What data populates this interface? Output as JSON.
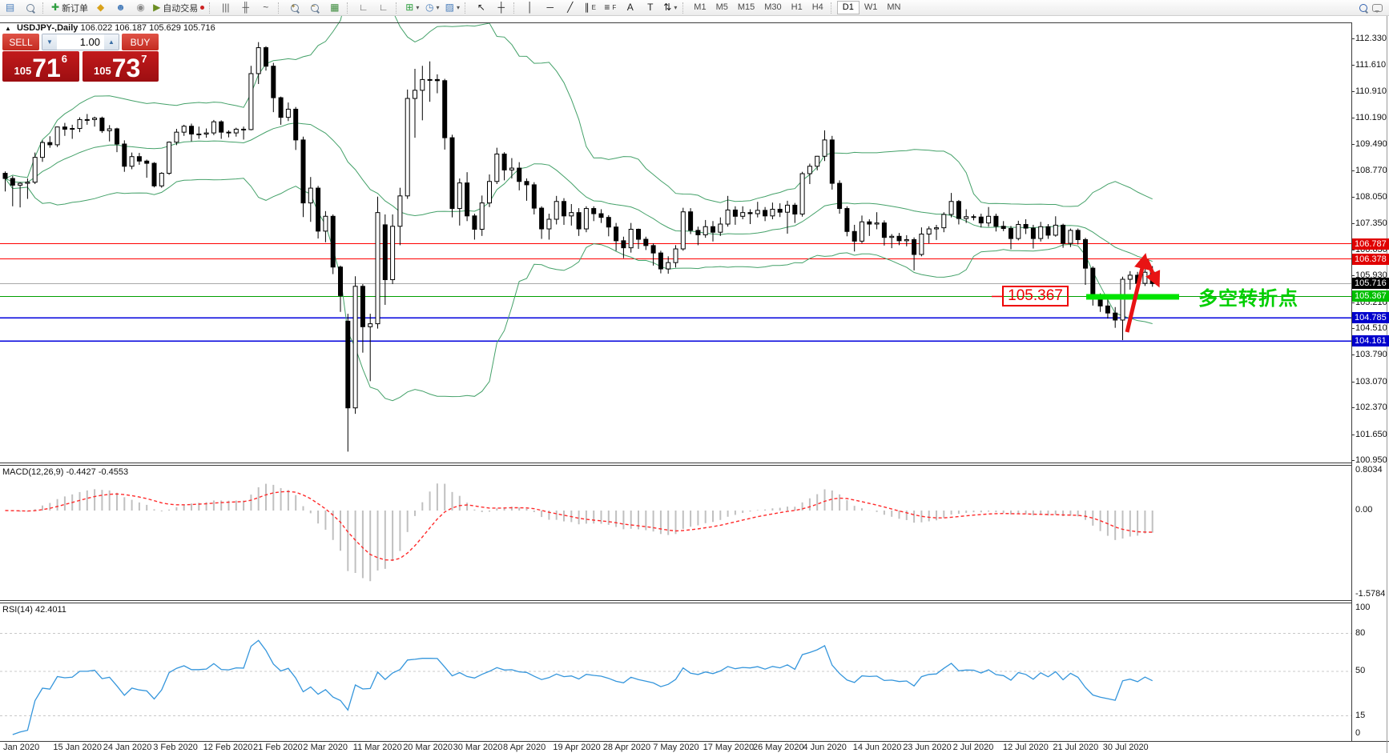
{
  "toolbar": {
    "new_order_label": "新订单",
    "autotrading_label": "自动交易",
    "timeframes": [
      "M1",
      "M5",
      "M15",
      "M30",
      "H1",
      "H4",
      "D1",
      "W1",
      "MN"
    ],
    "active_timeframe": "D1",
    "groups": [
      [
        {
          "name": "chart-window-icon",
          "glyph": "▤",
          "color": "#4a7ebb"
        },
        {
          "name": "preview-icon",
          "type": "magnifier"
        }
      ],
      [
        {
          "name": "new-order-icon",
          "glyph": "✚",
          "color": "#2e9e3f",
          "label": "新订单"
        },
        {
          "name": "quotes-icon",
          "glyph": "◆",
          "color": "#d9a21b"
        },
        {
          "name": "community-icon",
          "glyph": "☻",
          "color": "#4a7ebb"
        },
        {
          "name": "signals-icon",
          "glyph": "◉",
          "color": "#8a8a8a"
        },
        {
          "name": "autotrading-icon",
          "glyph": "▶",
          "color": "#6b8e23",
          "label": "自动交易",
          "dot": "#cc2222"
        }
      ],
      [
        {
          "name": "bar-chart-icon",
          "glyph": "|||",
          "color": "#555"
        },
        {
          "name": "candlestick-icon",
          "glyph": "╫",
          "color": "#555"
        },
        {
          "name": "line-chart-icon",
          "glyph": "~",
          "color": "#555"
        }
      ],
      [
        {
          "name": "zoom-in-icon",
          "type": "magnifier",
          "sign": "+"
        },
        {
          "name": "zoom-out-icon",
          "type": "magnifier",
          "sign": "−"
        },
        {
          "name": "tile-windows-icon",
          "glyph": "▦",
          "color": "#3a8a3a"
        }
      ],
      [
        {
          "name": "data-window-icon",
          "glyph": "∟",
          "color": "#555"
        },
        {
          "name": "navigator-icon",
          "glyph": "∟",
          "color": "#555"
        }
      ],
      [
        {
          "name": "add-indicator-icon",
          "glyph": "⊞",
          "color": "#2e9e3f",
          "caret": true
        },
        {
          "name": "period-icon",
          "glyph": "◷",
          "color": "#4a7ebb",
          "caret": true
        },
        {
          "name": "template-icon",
          "glyph": "▨",
          "color": "#4a7ebb",
          "caret": true
        }
      ],
      [
        {
          "name": "cursor-icon",
          "glyph": "↖",
          "color": "#222"
        },
        {
          "name": "crosshair-icon",
          "glyph": "┼",
          "color": "#222"
        }
      ],
      [
        {
          "name": "vertical-line-icon",
          "glyph": "│",
          "color": "#222"
        },
        {
          "name": "horizontal-line-icon",
          "glyph": "─",
          "color": "#222"
        },
        {
          "name": "trendline-icon",
          "glyph": "╱",
          "color": "#222"
        },
        {
          "name": "channel-icon",
          "glyph": "∥",
          "color": "#222",
          "sub": "E"
        },
        {
          "name": "fibonacci-icon",
          "glyph": "≡",
          "color": "#222",
          "sub": "F"
        },
        {
          "name": "text-icon",
          "glyph": "A",
          "color": "#222"
        },
        {
          "name": "label-icon",
          "glyph": "T",
          "color": "#222"
        },
        {
          "name": "arrows-icon",
          "glyph": "⇅",
          "color": "#222",
          "caret": true
        }
      ]
    ]
  },
  "chart_header": {
    "collapse_icon": "▲",
    "symbol": "USDJPY-,Daily",
    "ohlc": "106.022 106.187 105.629 105.716"
  },
  "trade_panel": {
    "sell_label": "SELL",
    "buy_label": "BUY",
    "volume": "1.00",
    "sell_price": {
      "prefix": "105",
      "big": "71",
      "sup": "6"
    },
    "buy_price": {
      "prefix": "105",
      "big": "73",
      "sup": "7"
    }
  },
  "price_axis": {
    "ticks": [
      "112.330",
      "111.610",
      "110.910",
      "110.190",
      "109.490",
      "108.770",
      "108.050",
      "107.350",
      "106.630",
      "105.930",
      "105.210",
      "104.510",
      "103.790",
      "103.070",
      "102.370",
      "101.650",
      "100.950"
    ],
    "badges": [
      {
        "text": "106.787",
        "price": 106.787,
        "bg": "#e00000"
      },
      {
        "text": "106.378",
        "price": 106.378,
        "bg": "#e00000"
      },
      {
        "text": "105.716",
        "price": 105.716,
        "bg": "#000000"
      },
      {
        "text": "105.367",
        "price": 105.367,
        "bg": "#00c000"
      },
      {
        "text": "104.785",
        "price": 104.785,
        "bg": "#0000cc"
      },
      {
        "text": "104.161",
        "price": 104.161,
        "bg": "#0000cc"
      }
    ]
  },
  "time_axis": {
    "labels": [
      "Jan 2020",
      "15 Jan 2020",
      "24 Jan 2020",
      "3 Feb 2020",
      "12 Feb 2020",
      "21 Feb 2020",
      "2 Mar 2020",
      "11 Mar 2020",
      "20 Mar 2020",
      "30 Mar 2020",
      "8 Apr 2020",
      "19 Apr 2020",
      "28 Apr 2020",
      "7 May 2020",
      "17 May 2020",
      "26 May 2020",
      "4 Jun 2020",
      "14 Jun 2020",
      "23 Jun 2020",
      "2 Jul 2020",
      "12 Jul 2020",
      "21 Jul 2020",
      "30 Jul 2020"
    ]
  },
  "annotations": {
    "level_label": "105.367",
    "note_text": "多空转折点"
  },
  "macd_panel": {
    "label": "MACD(12,26,9) -0.4427 -0.4553",
    "scale_top": "0.8034",
    "scale_zero": "0.00",
    "scale_bottom": "-1.5784"
  },
  "rsi_panel": {
    "label": "RSI(14) 42.4011",
    "scale": [
      "100",
      "80",
      "50",
      "15",
      "0"
    ],
    "level_values": [
      80,
      50,
      15
    ]
  },
  "chart_data": {
    "type": "candlestick",
    "symbol": "USDJPY",
    "timeframe": "Daily",
    "current_ohlc": {
      "open": 106.022,
      "high": 106.187,
      "low": 105.629,
      "close": 105.716
    },
    "y_axis_range": [
      100.88,
      112.76
    ],
    "horizontal_lines": [
      {
        "price": 106.787,
        "color": "#ff0000",
        "width": 1
      },
      {
        "price": 106.378,
        "color": "#ff0000",
        "width": 1
      },
      {
        "price": 105.716,
        "color": "#a8a8a8",
        "width": 1
      },
      {
        "price": 105.367,
        "color": "#00a000",
        "width": 1
      },
      {
        "price": 104.785,
        "color": "#0000dd",
        "width": 1.5
      },
      {
        "price": 104.161,
        "color": "#0000dd",
        "width": 1.5
      }
    ],
    "highlight_segment": {
      "price": 105.367,
      "color": "#00e400"
    },
    "indicators": [
      {
        "name": "Bollinger Bands",
        "period": 20,
        "deviation": 2,
        "color": "#44a169"
      },
      {
        "name": "MACD",
        "fast": 12,
        "slow": 26,
        "signal": 9,
        "values": [
          -0.4427,
          -0.4553
        ],
        "histogram_color": "#c0c0c0",
        "signal_color": "#ff2a2a"
      },
      {
        "name": "RSI",
        "period": 14,
        "value": 42.4011,
        "color": "#3596dc"
      }
    ],
    "candles": [
      [
        108.69,
        108.74,
        108.2,
        108.55
      ],
      [
        108.55,
        108.62,
        107.8,
        108.37
      ],
      [
        108.37,
        108.45,
        107.77,
        108.42
      ],
      [
        108.42,
        108.55,
        108.0,
        108.45
      ],
      [
        108.45,
        109.25,
        108.4,
        109.12
      ],
      [
        109.12,
        109.58,
        109.0,
        109.52
      ],
      [
        109.52,
        109.69,
        109.38,
        109.46
      ],
      [
        109.46,
        109.95,
        109.4,
        109.94
      ],
      [
        109.94,
        110.05,
        109.7,
        109.88
      ],
      [
        109.88,
        110.0,
        109.62,
        109.9
      ],
      [
        109.9,
        110.2,
        109.8,
        110.14
      ],
      [
        110.14,
        110.29,
        110.0,
        110.14
      ],
      [
        110.14,
        110.22,
        109.95,
        110.18
      ],
      [
        110.18,
        110.22,
        109.78,
        109.84
      ],
      [
        109.84,
        109.99,
        109.55,
        109.89
      ],
      [
        109.89,
        109.92,
        109.26,
        109.48
      ],
      [
        109.48,
        109.58,
        108.73,
        108.88
      ],
      [
        108.88,
        109.25,
        108.8,
        109.14
      ],
      [
        109.14,
        109.24,
        108.92,
        109.02
      ],
      [
        109.02,
        109.06,
        108.57,
        108.96
      ],
      [
        108.96,
        108.99,
        108.31,
        108.35
      ],
      [
        108.35,
        108.72,
        108.3,
        108.69
      ],
      [
        108.69,
        109.55,
        108.65,
        109.53
      ],
      [
        109.53,
        109.89,
        109.45,
        109.8
      ],
      [
        109.8,
        110.0,
        109.7,
        109.96
      ],
      [
        109.96,
        110.03,
        109.55,
        109.75
      ],
      [
        109.75,
        109.95,
        109.62,
        109.75
      ],
      [
        109.75,
        109.9,
        109.65,
        109.78
      ],
      [
        109.78,
        110.13,
        109.72,
        110.08
      ],
      [
        110.08,
        110.12,
        109.62,
        109.8
      ],
      [
        109.8,
        109.85,
        109.66,
        109.78
      ],
      [
        109.78,
        109.92,
        109.68,
        109.88
      ],
      [
        109.88,
        109.95,
        109.6,
        109.87
      ],
      [
        109.87,
        111.59,
        109.85,
        111.38
      ],
      [
        111.38,
        112.23,
        111.1,
        112.08
      ],
      [
        112.08,
        112.12,
        111.46,
        111.58
      ],
      [
        111.58,
        111.67,
        110.34,
        110.73
      ],
      [
        110.73,
        110.76,
        110.0,
        110.2
      ],
      [
        110.2,
        110.6,
        110.1,
        110.42
      ],
      [
        110.42,
        110.48,
        109.32,
        109.59
      ],
      [
        109.59,
        109.68,
        107.51,
        107.89
      ],
      [
        107.89,
        108.59,
        107.38,
        108.29
      ],
      [
        108.29,
        108.35,
        106.93,
        107.13
      ],
      [
        107.13,
        107.67,
        106.83,
        107.53
      ],
      [
        107.53,
        107.58,
        105.97,
        106.16
      ],
      [
        106.16,
        106.2,
        104.95,
        105.39
      ],
      [
        104.7,
        104.9,
        101.18,
        102.36
      ],
      [
        102.36,
        105.91,
        102.2,
        105.64
      ],
      [
        105.64,
        105.7,
        103.85,
        104.55
      ],
      [
        104.55,
        104.9,
        103.08,
        104.63
      ],
      [
        104.63,
        108.06,
        104.5,
        107.63
      ],
      [
        107.3,
        107.58,
        105.14,
        105.82
      ],
      [
        105.82,
        107.58,
        105.7,
        107.26
      ],
      [
        107.26,
        108.3,
        106.75,
        108.08
      ],
      [
        108.08,
        110.95,
        108.0,
        110.71
      ],
      [
        110.71,
        111.51,
        109.65,
        110.93
      ],
      [
        110.93,
        111.59,
        110.12,
        111.22
      ],
      [
        111.22,
        111.71,
        110.62,
        111.22
      ],
      [
        111.22,
        111.36,
        110.85,
        111.19
      ],
      [
        111.19,
        111.24,
        109.33,
        109.65
      ],
      [
        109.65,
        109.73,
        107.5,
        107.74
      ],
      [
        107.74,
        108.55,
        107.28,
        108.43
      ],
      [
        108.43,
        108.72,
        107.4,
        107.54
      ],
      [
        107.54,
        107.6,
        106.9,
        107.18
      ],
      [
        107.18,
        108.09,
        107.0,
        107.89
      ],
      [
        107.89,
        108.66,
        107.78,
        108.47
      ],
      [
        108.47,
        109.38,
        108.4,
        109.21
      ],
      [
        109.21,
        109.26,
        108.5,
        108.78
      ],
      [
        108.78,
        109.1,
        108.55,
        108.83
      ],
      [
        108.83,
        108.99,
        108.23,
        108.47
      ],
      [
        108.47,
        108.55,
        107.95,
        108.38
      ],
      [
        108.38,
        108.45,
        107.58,
        107.75
      ],
      [
        107.75,
        107.8,
        106.92,
        107.19
      ],
      [
        107.19,
        107.6,
        106.9,
        107.45
      ],
      [
        107.45,
        108.08,
        107.31,
        107.93
      ],
      [
        107.93,
        108.02,
        107.3,
        107.54
      ],
      [
        107.54,
        107.86,
        107.28,
        107.63
      ],
      [
        107.63,
        107.75,
        107.0,
        107.19
      ],
      [
        107.19,
        107.8,
        107.1,
        107.74
      ],
      [
        107.74,
        107.8,
        107.4,
        107.6
      ],
      [
        107.6,
        107.72,
        107.35,
        107.5
      ],
      [
        107.5,
        107.56,
        106.99,
        107.24
      ],
      [
        107.24,
        107.35,
        106.6,
        106.87
      ],
      [
        106.87,
        106.98,
        106.4,
        106.68
      ],
      [
        106.68,
        107.35,
        106.55,
        107.18
      ],
      [
        107.18,
        107.2,
        106.65,
        106.91
      ],
      [
        106.91,
        106.98,
        106.62,
        106.74
      ],
      [
        106.74,
        106.8,
        106.2,
        106.54
      ],
      [
        106.54,
        106.6,
        105.99,
        106.11
      ],
      [
        106.11,
        106.45,
        105.98,
        106.28
      ],
      [
        106.28,
        106.75,
        106.15,
        106.65
      ],
      [
        106.65,
        107.76,
        106.6,
        107.65
      ],
      [
        107.65,
        107.75,
        107.05,
        107.15
      ],
      [
        107.15,
        107.25,
        106.75,
        107.03
      ],
      [
        107.03,
        107.43,
        106.95,
        107.25
      ],
      [
        107.25,
        107.4,
        106.85,
        107.1
      ],
      [
        107.1,
        107.5,
        107.0,
        107.32
      ],
      [
        107.32,
        108.08,
        107.25,
        107.7
      ],
      [
        107.7,
        107.8,
        107.3,
        107.53
      ],
      [
        107.53,
        107.8,
        107.45,
        107.63
      ],
      [
        107.63,
        107.72,
        107.32,
        107.6
      ],
      [
        107.6,
        107.92,
        107.5,
        107.69
      ],
      [
        107.69,
        107.78,
        107.4,
        107.54
      ],
      [
        107.54,
        107.9,
        107.45,
        107.72
      ],
      [
        107.72,
        107.88,
        107.51,
        107.64
      ],
      [
        107.64,
        107.95,
        107.06,
        107.83
      ],
      [
        107.83,
        107.89,
        107.35,
        107.59
      ],
      [
        107.59,
        108.73,
        107.52,
        108.68
      ],
      [
        108.68,
        108.95,
        108.4,
        108.88
      ],
      [
        108.88,
        109.16,
        108.77,
        109.15
      ],
      [
        109.15,
        109.85,
        109.02,
        109.59
      ],
      [
        109.59,
        109.7,
        108.25,
        108.42
      ],
      [
        108.42,
        108.5,
        107.6,
        107.74
      ],
      [
        107.74,
        107.8,
        106.99,
        107.12
      ],
      [
        107.12,
        107.3,
        106.58,
        106.86
      ],
      [
        106.86,
        107.55,
        106.8,
        107.38
      ],
      [
        107.38,
        107.45,
        107.0,
        107.32
      ],
      [
        107.32,
        107.64,
        107.18,
        107.35
      ],
      [
        107.35,
        107.42,
        106.74,
        106.96
      ],
      [
        106.96,
        107.05,
        106.67,
        106.99
      ],
      [
        106.99,
        107.08,
        106.75,
        106.87
      ],
      [
        106.87,
        107.02,
        106.72,
        106.9
      ],
      [
        106.9,
        106.96,
        106.07,
        106.5
      ],
      [
        106.5,
        107.23,
        106.45,
        107.05
      ],
      [
        107.05,
        107.26,
        106.8,
        107.19
      ],
      [
        107.19,
        107.3,
        106.89,
        107.22
      ],
      [
        107.22,
        107.64,
        107.1,
        107.58
      ],
      [
        107.58,
        108.16,
        107.5,
        107.93
      ],
      [
        107.93,
        107.97,
        107.31,
        107.47
      ],
      [
        107.47,
        107.72,
        107.35,
        107.52
      ],
      [
        107.52,
        107.58,
        107.42,
        107.51
      ],
      [
        107.51,
        107.6,
        107.23,
        107.35
      ],
      [
        107.35,
        107.78,
        107.25,
        107.53
      ],
      [
        107.53,
        107.6,
        107.12,
        107.26
      ],
      [
        107.26,
        107.4,
        107.13,
        107.2
      ],
      [
        107.2,
        107.27,
        106.64,
        106.93
      ],
      [
        106.93,
        107.41,
        106.88,
        107.31
      ],
      [
        107.31,
        107.45,
        107.05,
        107.21
      ],
      [
        107.21,
        107.3,
        106.66,
        106.93
      ],
      [
        106.93,
        107.38,
        106.85,
        107.25
      ],
      [
        107.25,
        107.32,
        106.92,
        107.02
      ],
      [
        107.02,
        107.53,
        106.98,
        107.29
      ],
      [
        107.29,
        107.33,
        106.68,
        106.8
      ],
      [
        106.8,
        107.2,
        106.7,
        107.15
      ],
      [
        107.15,
        107.2,
        106.77,
        106.9
      ],
      [
        106.9,
        106.95,
        105.68,
        106.13
      ],
      [
        106.13,
        106.18,
        105.12,
        105.37
      ],
      [
        105.37,
        105.45,
        104.95,
        105.11
      ],
      [
        105.11,
        105.3,
        104.77,
        104.92
      ],
      [
        104.92,
        105.08,
        104.52,
        104.73
      ],
      [
        104.73,
        105.9,
        104.19,
        105.83
      ],
      [
        105.83,
        106.05,
        105.55,
        105.94
      ],
      [
        105.94,
        106.03,
        105.6,
        105.72
      ],
      [
        105.72,
        106.2,
        105.65,
        106.02
      ],
      [
        106.022,
        106.187,
        105.629,
        105.716
      ]
    ]
  }
}
